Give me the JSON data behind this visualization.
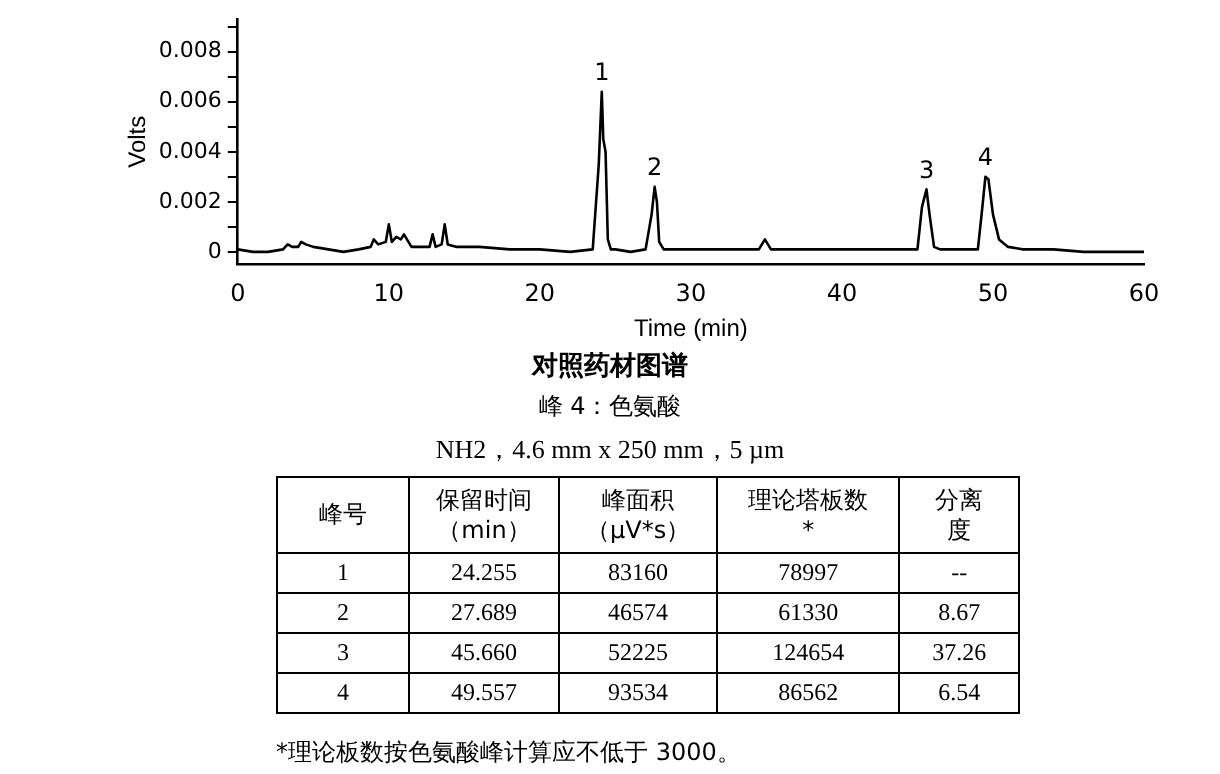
{
  "chart_data": {
    "type": "line",
    "title": "对照药材图谱",
    "subtitle": "峰 4：色氨酸",
    "xlabel": "Time (min)",
    "ylabel": "Volts",
    "x": [
      0,
      1,
      2,
      3,
      3.3,
      3.6,
      4,
      4.2,
      4.5,
      5,
      6,
      7,
      8,
      8.8,
      9,
      9.3,
      9.8,
      10,
      10.2,
      10.5,
      10.8,
      11,
      11.5,
      12,
      12.7,
      12.9,
      13.1,
      13.5,
      13.7,
      13.9,
      14.5,
      16,
      18,
      19,
      20,
      22,
      23.5,
      23.9,
      24.1,
      24.2,
      24.35,
      24.5,
      24.7,
      25,
      26,
      27,
      27.4,
      27.6,
      27.75,
      27.9,
      28.2,
      29,
      31,
      33,
      34.5,
      34.9,
      35.3,
      36,
      38,
      40,
      42,
      44,
      45,
      45.3,
      45.6,
      45.8,
      46.1,
      46.5,
      48,
      49,
      49.3,
      49.5,
      49.7,
      50,
      50.4,
      51,
      52,
      54,
      56,
      58,
      60
    ],
    "series": [
      {
        "color": "#000000",
        "values": [
          0.0001,
          0,
          0,
          0.0001,
          0.0003,
          0.0002,
          0.0002,
          0.0004,
          0.0003,
          0.0002,
          0.0001,
          0,
          0.0001,
          0.0002,
          0.0005,
          0.0003,
          0.0004,
          0.0011,
          0.0004,
          0.0006,
          0.0005,
          0.0007,
          0.0002,
          0.0002,
          0.0002,
          0.0007,
          0.0002,
          0.0003,
          0.0011,
          0.0003,
          0.0002,
          0.0002,
          0.0001,
          0.0001,
          0.0001,
          0,
          0.0001,
          0.0035,
          0.0064,
          0.0045,
          0.004,
          0.0005,
          0.0001,
          0.0001,
          0,
          0.0001,
          0.0015,
          0.0026,
          0.002,
          0.0004,
          0.0001,
          0.0001,
          0.0001,
          0.0001,
          0.0001,
          0.0005,
          0.0001,
          0.0001,
          0.0001,
          0.0001,
          0.0001,
          0.0001,
          0.0001,
          0.0018,
          0.0025,
          0.0015,
          0.0002,
          0.0001,
          0.0001,
          0.0001,
          0.0018,
          0.003,
          0.0029,
          0.0015,
          0.0005,
          0.0002,
          0.0001,
          0.0001,
          0,
          0,
          0
        ]
      }
    ],
    "xlim": [
      0,
      60
    ],
    "xticks": [
      0,
      10,
      20,
      30,
      40,
      50,
      60
    ],
    "ylim": [
      -0.0005,
      0.0093
    ],
    "yticks": [
      0,
      {
        "value": 0.001,
        "label": null
      },
      0.002,
      {
        "value": 0.003,
        "label": null
      },
      0.004,
      {
        "value": 0.005,
        "label": null
      },
      0.006,
      {
        "value": 0.007,
        "label": null
      },
      0.008,
      {
        "value": 0.009,
        "label": null
      }
    ],
    "grid": false,
    "legend": false,
    "marker": "none",
    "line_style": "solid",
    "annotations": [
      {
        "text": "1",
        "x": 24.1,
        "y": 0.0064
      },
      {
        "text": "2",
        "x": 27.6,
        "y": 0.0026
      },
      {
        "text": "3",
        "x": 45.6,
        "y": 0.0025
      },
      {
        "text": "4",
        "x": 49.5,
        "y": 0.003
      },
      "NH2，4.6 mm x 250 mm，5 µm",
      "峰号",
      "保留时间（min）",
      "峰面积（µV*s）",
      "理论塔板数*",
      "分离度",
      "1",
      "24.255",
      "83160",
      "78997",
      "--",
      "2",
      "27.689",
      "46574",
      "61330",
      "8.67",
      "3",
      "45.660",
      "52225",
      "124654",
      "37.26",
      "4",
      "49.557",
      "93534",
      "86562",
      "6.54",
      "*理论板数按色氨酸峰计算应不低于 3000。"
    ]
  }
}
